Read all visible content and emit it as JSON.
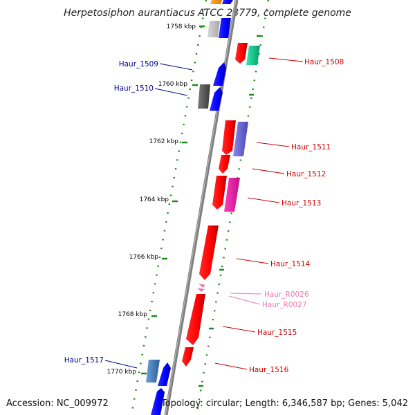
{
  "title": "Herpetosiphon aurantiacus ATCC 23779, complete genome",
  "footer": {
    "accession": "Accession: NC_009972",
    "summary": "Topology: circular; Length: 6,346,587 bp; Genes: 5,042"
  },
  "kbp_ticks": [
    "1758 kbp",
    "1760 kbp",
    "1762 kbp",
    "1764 kbp",
    "1766 kbp",
    "1768 kbp",
    "1770 kbp"
  ],
  "gene_labels": {
    "haur_1508": "Haur_1508",
    "haur_1509": "Haur_1509",
    "haur_1510": "Haur_1510",
    "haur_1511": "Haur_1511",
    "haur_1512": "Haur_1512",
    "haur_1513": "Haur_1513",
    "haur_1514": "Haur_1514",
    "haur_r0026": "Haur_R0026",
    "haur_r0027": "Haur_R0027",
    "haur_1515": "Haur_1515",
    "haur_1516": "Haur_1516",
    "haur_1517": "Haur_1517"
  },
  "colors": {
    "forward_label": "#cc0000",
    "reverse_label": "#00008b",
    "rna_label": "#e87cb0",
    "forward_gene": "#ff0000",
    "reverse_gene": "#0000ff",
    "backbone": "#808080",
    "dots": "#1a8a1a"
  }
}
